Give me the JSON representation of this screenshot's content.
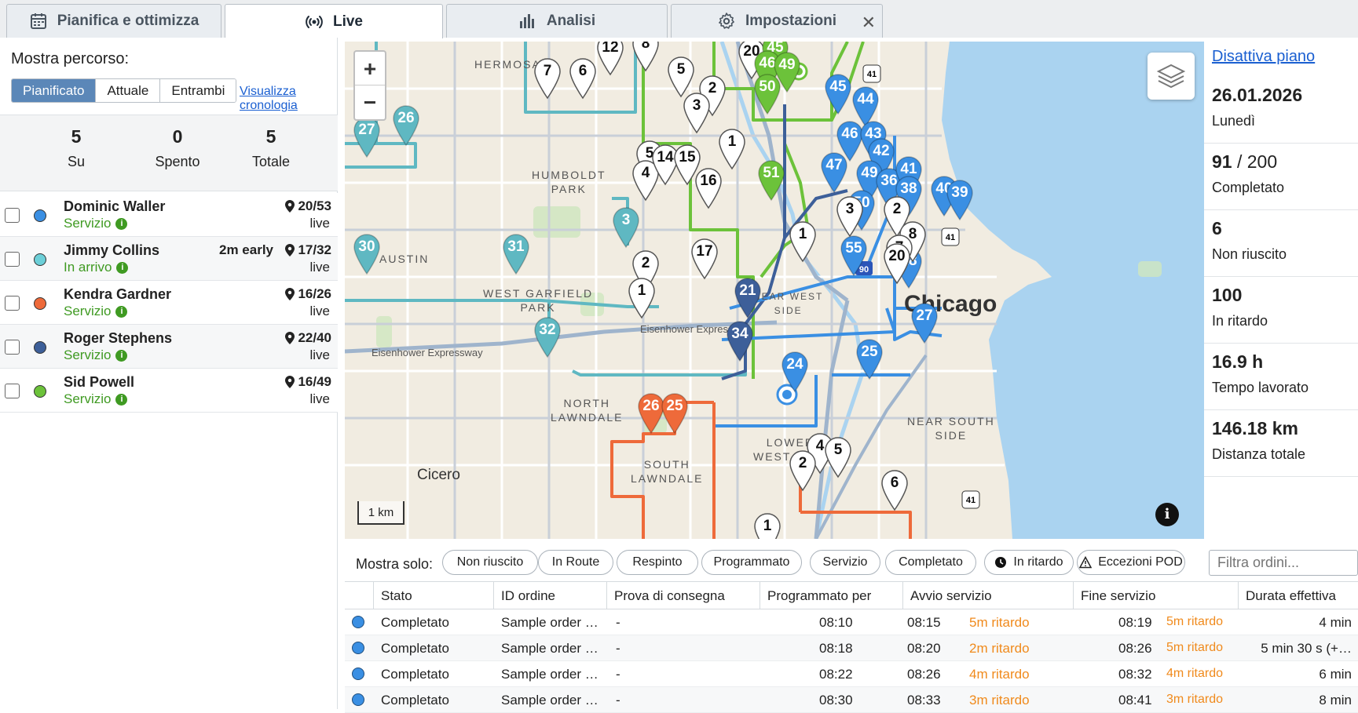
{
  "tabs": [
    {
      "label": "Pianifica e ottimizza",
      "icon": "calendar-icon"
    },
    {
      "label": "Live",
      "icon": "broadcast-icon"
    },
    {
      "label": "Analisi",
      "icon": "bar-chart-icon"
    },
    {
      "label": "Impostazioni",
      "icon": "gear-icon"
    }
  ],
  "left": {
    "mostra_percorso": "Mostra percorso:",
    "segments": [
      "Pianificato",
      "Attuale",
      "Entrambi"
    ],
    "timeline_link": "Visualizza cronologia",
    "stats": [
      {
        "value": "5",
        "label": "Su"
      },
      {
        "value": "0",
        "label": "Spento"
      },
      {
        "value": "5",
        "label": "Totale"
      }
    ],
    "drivers": [
      {
        "name": "Dominic Waller",
        "status": "Servizio",
        "early": "",
        "count": "20/53",
        "live": "live",
        "color": "#3a8fe3"
      },
      {
        "name": "Jimmy Collins",
        "status": "In arrivo",
        "early": "2m early",
        "count": "17/32",
        "live": "live",
        "color": "#6ccfd8"
      },
      {
        "name": "Kendra Gardner",
        "status": "Servizio",
        "early": "",
        "count": "16/26",
        "live": "live",
        "color": "#ee6a3a"
      },
      {
        "name": "Roger Stephens",
        "status": "Servizio",
        "early": "",
        "count": "22/40",
        "live": "live",
        "color": "#3d5f99"
      },
      {
        "name": "Sid Powell",
        "status": "Servizio",
        "early": "",
        "count": "16/49",
        "live": "live",
        "color": "#6cc23a"
      }
    ]
  },
  "map": {
    "labels": {
      "hermosa": "HERMOSA",
      "humboldt": "HUMBOLDT\nPARK",
      "austin": "AUSTIN",
      "west_garfield": "WEST GARFIELD\nPARK",
      "north_lawndale": "NORTH\nLAWNDALE",
      "south_lawndale": "SOUTH\nLAWNDALE",
      "lower_west": "LOWER\nWEST SIDE",
      "near_south": "NEAR SOUTH\nSIDE",
      "near_west": "NEAR WEST\nSIDE",
      "city": "Chicago",
      "cicero": "Cicero",
      "eisenhower1": "Eisenhower Expressway",
      "eisenhower2": "Eisenhower Express"
    },
    "scale": "1 km",
    "zoom_in": "+",
    "zoom_out": "−",
    "info": "i",
    "pins": [
      {
        "n": "7",
        "c": "#ffffff"
      },
      {
        "n": "6",
        "c": "#ffffff"
      },
      {
        "n": "12",
        "c": "#ffffff"
      },
      {
        "n": "8",
        "c": "#ffffff"
      },
      {
        "n": "5",
        "c": "#ffffff"
      },
      {
        "n": "2",
        "c": "#ffffff"
      },
      {
        "n": "3",
        "c": "#ffffff"
      },
      {
        "n": "1",
        "c": "#ffffff"
      },
      {
        "n": "20",
        "c": "#ffffff"
      },
      {
        "n": "45",
        "c": "#6cc23a"
      },
      {
        "n": "46",
        "c": "#6cc23a"
      },
      {
        "n": "49",
        "c": "#6cc23a"
      },
      {
        "n": "50",
        "c": "#6cc23a"
      },
      {
        "n": "51",
        "c": "#6cc23a"
      },
      {
        "n": "45",
        "c": "#3a8fe3"
      },
      {
        "n": "44",
        "c": "#3a8fe3"
      },
      {
        "n": "46",
        "c": "#3a8fe3"
      },
      {
        "n": "43",
        "c": "#3a8fe3"
      },
      {
        "n": "42",
        "c": "#3a8fe3"
      },
      {
        "n": "47",
        "c": "#3a8fe3"
      },
      {
        "n": "49",
        "c": "#3a8fe3"
      },
      {
        "n": "36",
        "c": "#3a8fe3"
      },
      {
        "n": "41",
        "c": "#3a8fe3"
      },
      {
        "n": "38",
        "c": "#3a8fe3"
      },
      {
        "n": "40",
        "c": "#3a8fe3"
      },
      {
        "n": "39",
        "c": "#3a8fe3"
      },
      {
        "n": "50",
        "c": "#3a8fe3"
      },
      {
        "n": "55",
        "c": "#3a8fe3"
      },
      {
        "n": "28",
        "c": "#3a8fe3"
      },
      {
        "n": "27",
        "c": "#3a8fe3"
      },
      {
        "n": "25",
        "c": "#3a8fe3"
      },
      {
        "n": "24",
        "c": "#3a8fe3"
      },
      {
        "n": "3",
        "c": "#ffffff"
      },
      {
        "n": "2",
        "c": "#ffffff"
      },
      {
        "n": "8",
        "c": "#ffffff"
      },
      {
        "n": "7",
        "c": "#ffffff"
      },
      {
        "n": "20",
        "c": "#ffffff"
      },
      {
        "n": "1",
        "c": "#ffffff"
      },
      {
        "n": "27",
        "c": "#5fb8c2"
      },
      {
        "n": "26",
        "c": "#5fb8c2"
      },
      {
        "n": "30",
        "c": "#5fb8c2"
      },
      {
        "n": "31",
        "c": "#5fb8c2"
      },
      {
        "n": "32",
        "c": "#5fb8c2"
      },
      {
        "n": "3",
        "c": "#5fb8c2"
      },
      {
        "n": "5",
        "c": "#ffffff"
      },
      {
        "n": "4",
        "c": "#ffffff"
      },
      {
        "n": "14",
        "c": "#ffffff"
      },
      {
        "n": "15",
        "c": "#ffffff"
      },
      {
        "n": "16",
        "c": "#ffffff"
      },
      {
        "n": "17",
        "c": "#ffffff"
      },
      {
        "n": "2",
        "c": "#ffffff"
      },
      {
        "n": "1",
        "c": "#ffffff"
      },
      {
        "n": "21",
        "c": "#3d5f99"
      },
      {
        "n": "34",
        "c": "#3d5f99"
      },
      {
        "n": "26",
        "c": "#ee6a3a"
      },
      {
        "n": "25",
        "c": "#ee6a3a"
      },
      {
        "n": "4",
        "c": "#ffffff"
      },
      {
        "n": "5",
        "c": "#ffffff"
      },
      {
        "n": "2",
        "c": "#ffffff"
      },
      {
        "n": "6",
        "c": "#ffffff"
      },
      {
        "n": "1",
        "c": "#ffffff"
      }
    ]
  },
  "right": {
    "disattiva": "Disattiva piano",
    "stats": [
      {
        "value": "26.01.2026",
        "den": "",
        "label": "Lunedì"
      },
      {
        "value": "91",
        "den": " / 200",
        "label": "Completato"
      },
      {
        "value": "6",
        "den": "",
        "label": "Non riuscito"
      },
      {
        "value": "100",
        "den": "",
        "label": "In ritardo"
      },
      {
        "value": "16.9 h",
        "den": "",
        "label": "Tempo lavorato"
      },
      {
        "value": "146.18 km",
        "den": "",
        "label": "Distanza totale"
      }
    ]
  },
  "filters": {
    "label": "Mostra solo:",
    "chips": [
      "Non riuscito",
      "In Route",
      "Respinto",
      "Programmato",
      "Servizio",
      "Completato",
      "In ritardo",
      "Eccezioni POD"
    ],
    "search_placeholder": "Filtra ordini..."
  },
  "table": {
    "headers": [
      "Stato",
      "ID ordine",
      "Prova di consegna",
      "Programmato per",
      "Avvio servizio",
      "Fine servizio",
      "Durata effettiva"
    ],
    "rows": [
      {
        "stato": "Completato",
        "id": "Sample order …",
        "prova": "-",
        "prog": "08:10",
        "avvio": "08:15",
        "avvio_late": "5m ritardo",
        "fine": "08:19",
        "fine_late": "5m ritardo",
        "durata": "4 min"
      },
      {
        "stato": "Completato",
        "id": "Sample order …",
        "prova": "-",
        "prog": "08:18",
        "avvio": "08:20",
        "avvio_late": "2m ritardo",
        "fine": "08:26",
        "fine_late": "5m ritardo",
        "durata": "5 min 30 s (+…"
      },
      {
        "stato": "Completato",
        "id": "Sample order …",
        "prova": "-",
        "prog": "08:22",
        "avvio": "08:26",
        "avvio_late": "4m ritardo",
        "fine": "08:32",
        "fine_late": "4m ritardo",
        "durata": "6 min"
      },
      {
        "stato": "Completato",
        "id": "Sample order …",
        "prova": "-",
        "prog": "08:30",
        "avvio": "08:33",
        "avvio_late": "3m ritardo",
        "fine": "08:41",
        "fine_late": "3m ritardo",
        "durata": "8 min"
      }
    ]
  }
}
